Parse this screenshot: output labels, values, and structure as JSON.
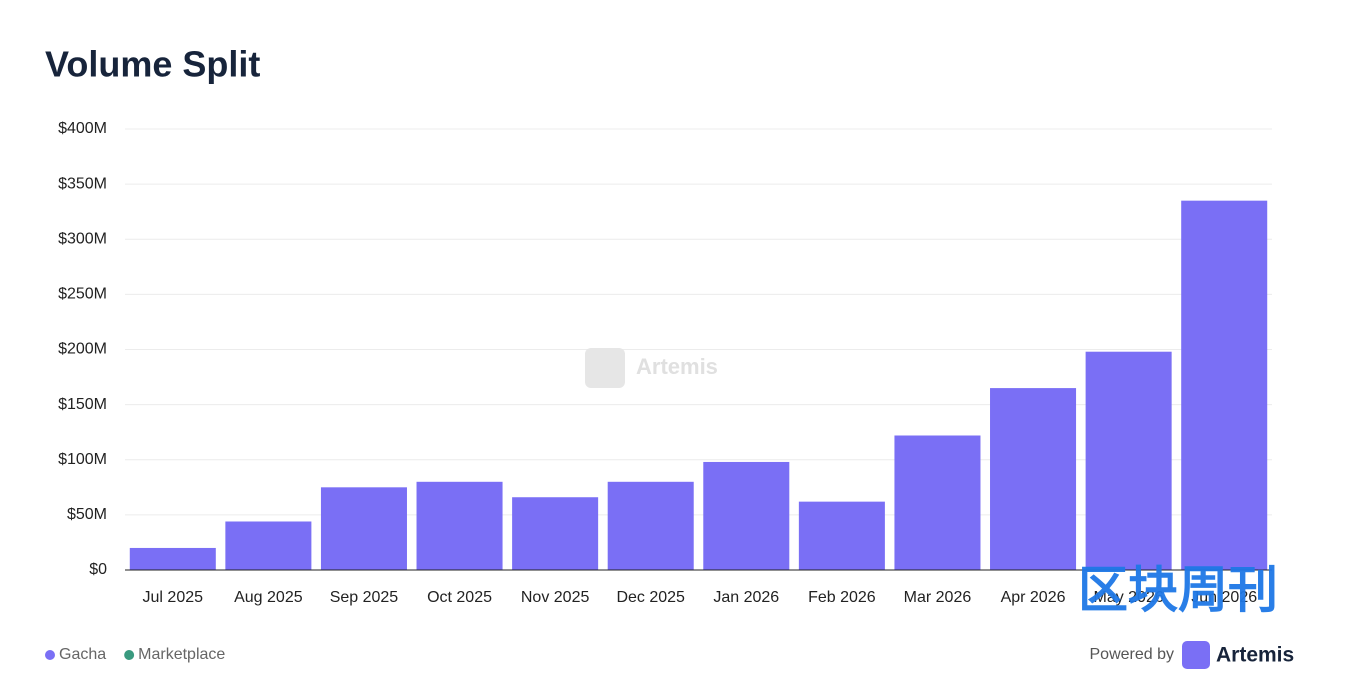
{
  "chart_data": {
    "type": "bar",
    "title": "Volume Split",
    "categories": [
      "Jul 2025",
      "Aug 2025",
      "Sep 2025",
      "Oct 2025",
      "Nov 2025",
      "Dec 2025",
      "Jan 2026",
      "Feb 2026",
      "Mar 2026",
      "Apr 2026",
      "May 2026",
      "Jun 2026"
    ],
    "series": [
      {
        "name": "Gacha",
        "color": "#7a6ff5",
        "values": [
          20000000,
          44000000,
          75000000,
          80000000,
          66000000,
          80000000,
          98000000,
          62000000,
          122000000,
          165000000,
          198000000,
          335000000
        ]
      },
      {
        "name": "Marketplace",
        "color": "#3a9a7f",
        "values": [
          0,
          0,
          0,
          0,
          0,
          0,
          0,
          0,
          0,
          0,
          0,
          0
        ]
      }
    ],
    "stacked": true,
    "ylim": [
      0,
      400000000
    ],
    "yticks": [
      {
        "value": 0,
        "label": "$0"
      },
      {
        "value": 50000000,
        "label": "$50M"
      },
      {
        "value": 100000000,
        "label": "$100M"
      },
      {
        "value": 150000000,
        "label": "$150M"
      },
      {
        "value": 200000000,
        "label": "$200M"
      },
      {
        "value": 250000000,
        "label": "$250M"
      },
      {
        "value": 300000000,
        "label": "$300M"
      },
      {
        "value": 350000000,
        "label": "$350M"
      },
      {
        "value": 400000000,
        "label": "$400M"
      }
    ],
    "grid": true,
    "legend": "bottom-left",
    "watermark": "Artemis",
    "credit_prefix": "Powered by",
    "credit_brand": "Artemis",
    "overlay_text": "区块周刊"
  }
}
